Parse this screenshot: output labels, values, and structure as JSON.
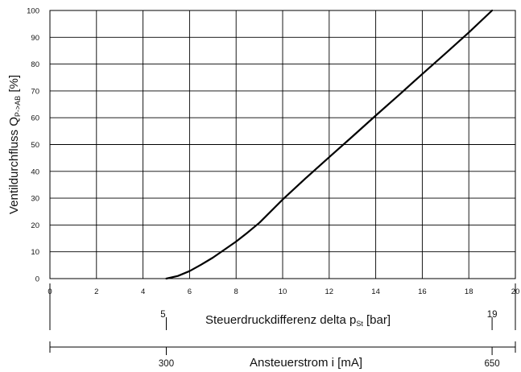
{
  "chart_data": {
    "type": "line",
    "x_axis": {
      "range": [
        0,
        20
      ],
      "ticks": [
        "0",
        "2",
        "4",
        "6",
        "8",
        "10",
        "12",
        "14",
        "16",
        "18",
        "20"
      ],
      "label_main": "Steuerdruckdifferenz delta p",
      "label_sub": "St",
      "label_unit": " [bar]"
    },
    "y_axis": {
      "range": [
        0,
        100
      ],
      "ticks": [
        "0",
        "10",
        "20",
        "30",
        "40",
        "50",
        "60",
        "70",
        "80",
        "90",
        "100"
      ],
      "label_main": "Ventildurchfluss Q",
      "label_sub": "P->AB",
      "label_unit": " [%]"
    },
    "grid": true,
    "series": [
      {
        "x": [
          5.0,
          5.5,
          6.0,
          6.5,
          7.0,
          7.5,
          8.0,
          8.5,
          9.0,
          10.0,
          11.0,
          12.0,
          13.0,
          14.0,
          15.0,
          16.0,
          17.0,
          18.0,
          19.0
        ],
        "y": [
          0,
          1,
          2.8,
          5.2,
          7.8,
          10.8,
          13.8,
          17.2,
          20.8,
          29.5,
          37.5,
          45.3,
          53.0,
          60.8,
          68.5,
          76.3,
          84.0,
          91.8,
          100
        ]
      }
    ],
    "pressure_axis": {
      "label_main": "Steuerdruckdifferenz delta p",
      "label_sub": "St",
      "label_unit": " [bar]",
      "marks": [
        {
          "value": 5,
          "label": "5"
        },
        {
          "value": 19,
          "label": "19"
        }
      ]
    },
    "current_axis": {
      "label": "Ansteuerstrom i [mA]",
      "marks": [
        {
          "value": 5,
          "label": "300"
        },
        {
          "value": 19,
          "label": "650"
        }
      ]
    }
  }
}
